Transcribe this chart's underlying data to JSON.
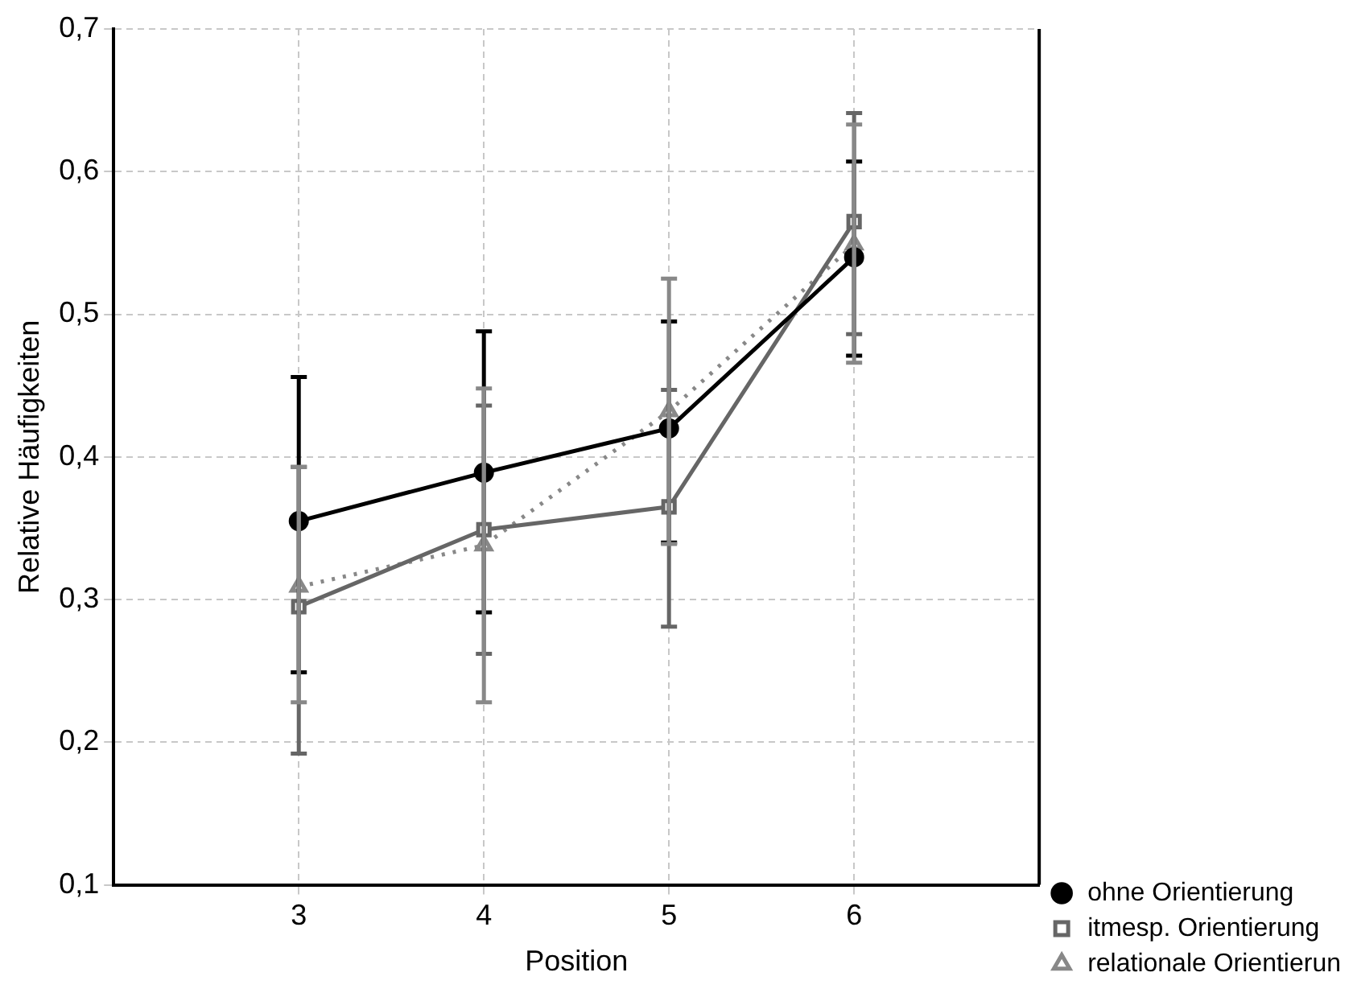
{
  "chart_data": {
    "type": "line",
    "xlabel": "Position",
    "ylabel": "Relative Häufigkeiten",
    "x": [
      3,
      4,
      5,
      6
    ],
    "xlim": [
      2,
      7
    ],
    "xticks": [
      3,
      4,
      5,
      6
    ],
    "ylim": [
      0.1,
      0.7
    ],
    "yticks": [
      {
        "value": 0.1,
        "label": "0,1"
      },
      {
        "value": 0.2,
        "label": "0,2"
      },
      {
        "value": 0.3,
        "label": "0,3"
      },
      {
        "value": 0.4,
        "label": "0,4"
      },
      {
        "value": 0.5,
        "label": "0,5"
      },
      {
        "value": 0.6,
        "label": "0,6"
      },
      {
        "value": 0.7,
        "label": "0,7"
      }
    ],
    "grid": true,
    "legend": "bottom right",
    "series": [
      {
        "name": "ohne Orientierung",
        "color": "#000000",
        "marker": "circle",
        "line_style": "solid",
        "values": [
          0.355,
          0.389,
          0.42,
          0.54
        ],
        "errors": [
          [
            0.249,
            0.456
          ],
          [
            0.291,
            0.488
          ],
          [
            0.34,
            0.495
          ],
          [
            0.471,
            0.607
          ]
        ]
      },
      {
        "name": "itmesp. Orientierung",
        "color": "#666666",
        "marker": "square",
        "line_style": "solid",
        "values": [
          0.295,
          0.349,
          0.365,
          0.565
        ],
        "errors": [
          [
            0.192,
            0.393
          ],
          [
            0.262,
            0.436
          ],
          [
            0.281,
            0.447
          ],
          [
            0.486,
            0.641
          ]
        ]
      },
      {
        "name": "relationale Orientierun",
        "color": "#888888",
        "marker": "triangle",
        "line_style": "dotted",
        "values": [
          0.309,
          0.338,
          0.432,
          0.549
        ],
        "errors": [
          [
            0.228,
            0.393
          ],
          [
            0.228,
            0.448
          ],
          [
            0.339,
            0.525
          ],
          [
            0.466,
            0.633
          ]
        ]
      }
    ]
  }
}
